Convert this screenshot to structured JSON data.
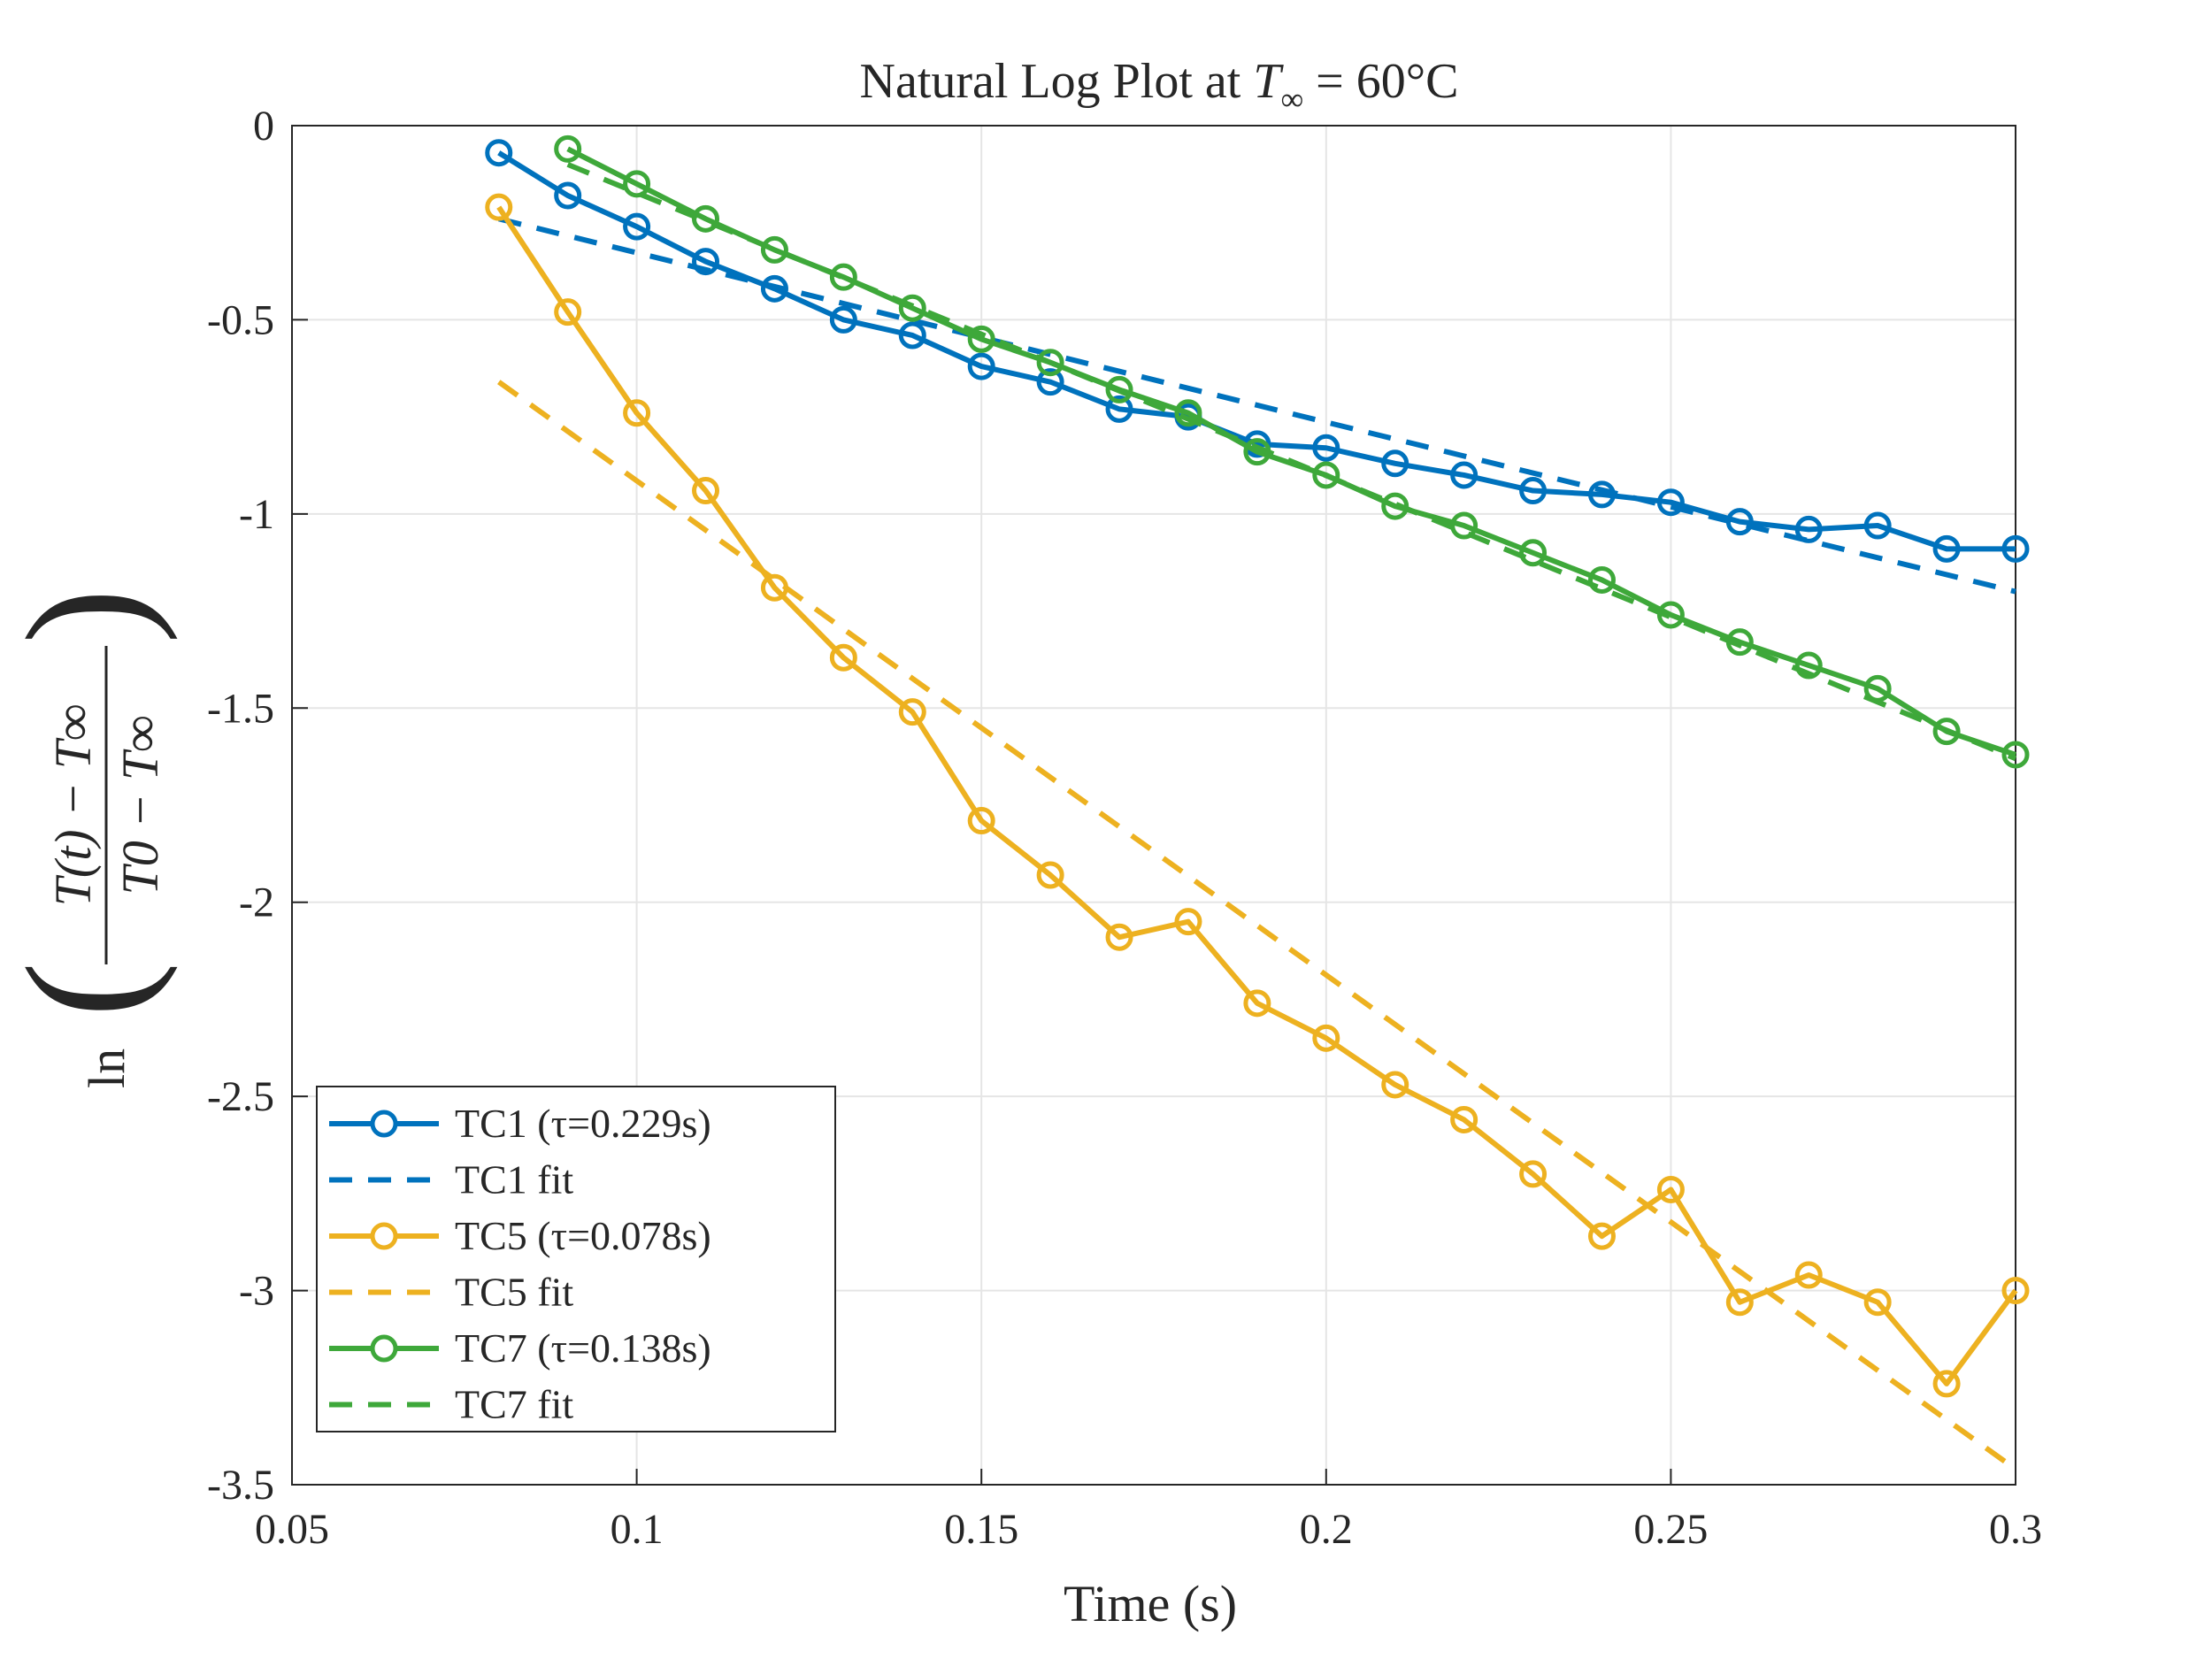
{
  "chart_data": {
    "type": "line",
    "title": {
      "pre": "Natural Log Plot at ",
      "sym": "T",
      "sub": "∞",
      "post": " = 60°C"
    },
    "xlabel": "Time (s)",
    "ylabel": {
      "ln": "ln",
      "numerator": "T(t) − T∞",
      "denominator": "T0 − T∞"
    },
    "xlim": [
      0.05,
      0.3
    ],
    "ylim": [
      -3.5,
      0
    ],
    "xticks": [
      0.05,
      0.1,
      0.15,
      0.2,
      0.25,
      0.3
    ],
    "xtick_labels": [
      "0.05",
      "0.1",
      "0.15",
      "0.2",
      "0.25",
      "0.3"
    ],
    "yticks": [
      0,
      -0.5,
      -1,
      -1.5,
      -2,
      -2.5,
      -3,
      -3.5
    ],
    "ytick_labels": [
      "0",
      "-0.5",
      "-1",
      "-1.5",
      "-2",
      "-2.5",
      "-3",
      "-3.5"
    ],
    "grid": true,
    "legend_position": "bottom-left",
    "series": [
      {
        "name": "TC1 (τ=0.229s)",
        "color": "#0072BD",
        "style": "solid-marker",
        "x": [
          0.08,
          0.09,
          0.1,
          0.11,
          0.12,
          0.13,
          0.14,
          0.15,
          0.16,
          0.17,
          0.18,
          0.19,
          0.2,
          0.21,
          0.22,
          0.23,
          0.24,
          0.25,
          0.26,
          0.27,
          0.28,
          0.29,
          0.3
        ],
        "y": [
          -0.07,
          -0.18,
          -0.26,
          -0.35,
          -0.42,
          -0.5,
          -0.54,
          -0.62,
          -0.66,
          -0.73,
          -0.75,
          -0.82,
          -0.83,
          -0.87,
          -0.9,
          -0.94,
          -0.95,
          -0.97,
          -1.02,
          -1.04,
          -1.03,
          -1.09,
          -1.09
        ]
      },
      {
        "name": "TC1 fit",
        "color": "#0072BD",
        "style": "dashed",
        "x": [
          0.08,
          0.3
        ],
        "y": [
          -0.24,
          -1.2
        ]
      },
      {
        "name": "TC5 (τ=0.078s)",
        "color": "#EDB120",
        "style": "solid-marker",
        "x": [
          0.08,
          0.09,
          0.1,
          0.11,
          0.12,
          0.13,
          0.14,
          0.15,
          0.16,
          0.17,
          0.18,
          0.19,
          0.2,
          0.21,
          0.22,
          0.23,
          0.24,
          0.25,
          0.26,
          0.27,
          0.28,
          0.29,
          0.3
        ],
        "y": [
          -0.21,
          -0.48,
          -0.74,
          -0.94,
          -1.19,
          -1.37,
          -1.51,
          -1.79,
          -1.93,
          -2.09,
          -2.05,
          -2.26,
          -2.35,
          -2.47,
          -2.56,
          -2.7,
          -2.86,
          -2.74,
          -3.03,
          -2.96,
          -3.03,
          -3.24,
          -3.0
        ]
      },
      {
        "name": "TC5 fit",
        "color": "#EDB120",
        "style": "dashed",
        "x": [
          0.08,
          0.3
        ],
        "y": [
          -0.66,
          -3.46
        ]
      },
      {
        "name": "TC7 (τ=0.138s)",
        "color": "#3EA83A",
        "style": "solid-marker",
        "x": [
          0.09,
          0.1,
          0.11,
          0.12,
          0.13,
          0.14,
          0.15,
          0.16,
          0.17,
          0.18,
          0.19,
          0.2,
          0.21,
          0.22,
          0.23,
          0.24,
          0.25,
          0.26,
          0.27,
          0.28,
          0.29,
          0.3
        ],
        "y": [
          -0.06,
          -0.15,
          -0.24,
          -0.32,
          -0.39,
          -0.47,
          -0.55,
          -0.61,
          -0.68,
          -0.74,
          -0.84,
          -0.9,
          -0.98,
          -1.03,
          -1.1,
          -1.17,
          -1.26,
          -1.33,
          -1.39,
          -1.45,
          -1.56,
          -1.62
        ]
      },
      {
        "name": "TC7 fit",
        "color": "#3EA83A",
        "style": "dashed",
        "x": [
          0.09,
          0.3
        ],
        "y": [
          -0.1,
          -1.63
        ]
      }
    ]
  }
}
